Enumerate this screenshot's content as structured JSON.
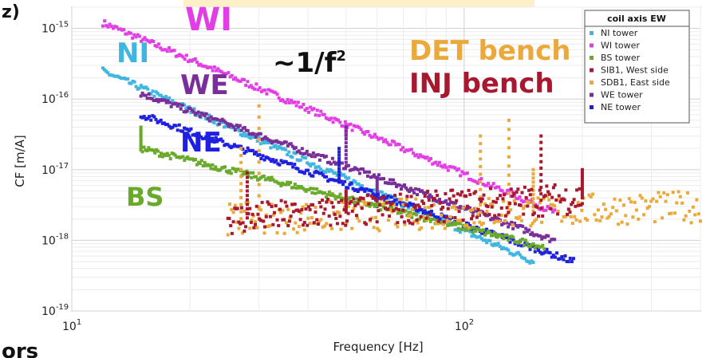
{
  "fragments": {
    "top_left": "z)",
    "bottom_left": "ors"
  },
  "chart_data": {
    "type": "scatter",
    "xscale": "log",
    "yscale": "log",
    "xlim": [
      10,
      400
    ],
    "ylim": [
      1e-19,
      2e-15
    ],
    "grid": true,
    "xlabel": "Frequency [Hz]",
    "ylabel": "CF [m/A]",
    "xticks": [
      {
        "value": 10,
        "base": "10",
        "exp": "1"
      },
      {
        "value": 100,
        "base": "10",
        "exp": "2"
      }
    ],
    "yticks": [
      {
        "value": 1e-15,
        "base": "10",
        "exp": "-15"
      },
      {
        "value": 1e-16,
        "base": "10",
        "exp": "-16"
      },
      {
        "value": 1e-17,
        "base": "10",
        "exp": "-17"
      },
      {
        "value": 1e-18,
        "base": "10",
        "exp": "-18"
      },
      {
        "value": 1e-19,
        "base": "10",
        "exp": "-19"
      }
    ],
    "legend": {
      "title": "coil axis EW",
      "position": "top-right",
      "entries": [
        {
          "label": "NI tower",
          "color": "#3fb6e0"
        },
        {
          "label": "WI tower",
          "color": "#e23ee6"
        },
        {
          "label": "BS tower",
          "color": "#6aaa2a"
        },
        {
          "label": "SIB1, West side",
          "color": "#a8182e"
        },
        {
          "label": "SDB1, East side",
          "color": "#eaa93a"
        },
        {
          "label": "WE tower",
          "color": "#7a2e9a"
        },
        {
          "label": "NE tower",
          "color": "#1f1fe0"
        }
      ]
    },
    "annotations": [
      {
        "text": "WI",
        "color": "#e23ee6",
        "size": 40
      },
      {
        "text": "NI",
        "color": "#3fb6e0",
        "size": 34
      },
      {
        "text": "WE",
        "color": "#7a2e9a",
        "size": 34
      },
      {
        "text": "NE",
        "color": "#1f1fe0",
        "size": 34
      },
      {
        "text": "BS",
        "color": "#6aaa2a",
        "size": 32
      },
      {
        "text": "DET bench",
        "color": "#eaa93a",
        "size": 34
      },
      {
        "text": "INJ bench",
        "color": "#a8182e",
        "size": 34
      }
    ],
    "slope_label": {
      "base": "~1/f",
      "exp": "2"
    },
    "series": [
      {
        "name": "WI tower",
        "color": "#e23ee6",
        "x_range": [
          12,
          170
        ],
        "y_at_xmin": 1.2e-15,
        "y_at_xmax": 2.5e-18,
        "slope": -2.4,
        "peaks": [
          {
            "x": 50,
            "y": 3e-17
          }
        ]
      },
      {
        "name": "NI tower",
        "color": "#3fb6e0",
        "x_range": [
          12,
          150
        ],
        "y_at_xmin": 2.5e-16,
        "y_at_xmax": 5e-19,
        "slope": -2.4,
        "peaks": [
          {
            "x": 48,
            "y": 1e-17
          }
        ]
      },
      {
        "name": "WE tower",
        "color": "#7a2e9a",
        "x_range": [
          15,
          170
        ],
        "y_at_xmin": 1.2e-16,
        "y_at_xmax": 1e-18,
        "slope": -2.0,
        "peaks": [
          {
            "x": 50,
            "y": 4e-17
          },
          {
            "x": 60,
            "y": 3e-18
          }
        ]
      },
      {
        "name": "NE tower",
        "color": "#1f1fe0",
        "x_range": [
          15,
          190
        ],
        "y_at_xmin": 6e-17,
        "y_at_xmax": 5e-19,
        "slope": -2.2,
        "peaks": [
          {
            "x": 48,
            "y": 2e-17
          },
          {
            "x": 125,
            "y": 1.2e-18
          }
        ]
      },
      {
        "name": "BS tower",
        "color": "#6aaa2a",
        "x_range": [
          15,
          160
        ],
        "y_at_xmin": 2e-17,
        "y_at_xmax": 8e-19,
        "slope": -1.4,
        "peaks": [
          {
            "x": 15,
            "y": 4e-17
          }
        ]
      },
      {
        "name": "SDB1, East side",
        "color": "#eaa93a",
        "x_range": [
          25,
          400
        ],
        "y_at_xmin": 2e-18,
        "y_at_xmax": 3e-18,
        "slope": 0,
        "peaks": [
          {
            "x": 30,
            "y": 8e-17
          },
          {
            "x": 27,
            "y": 2e-17
          },
          {
            "x": 110,
            "y": 3e-17
          },
          {
            "x": 130,
            "y": 5e-17
          },
          {
            "x": 150,
            "y": 1e-17
          }
        ]
      },
      {
        "name": "SIB1, West side",
        "color": "#a8182e",
        "x_range": [
          25,
          200
        ],
        "y_at_xmin": 2e-18,
        "y_at_xmax": 4e-18,
        "slope": 0,
        "peaks": [
          {
            "x": 28,
            "y": 9e-18
          },
          {
            "x": 50,
            "y": 5e-18
          },
          {
            "x": 157,
            "y": 3e-17
          },
          {
            "x": 200,
            "y": 1e-17
          }
        ]
      }
    ]
  }
}
